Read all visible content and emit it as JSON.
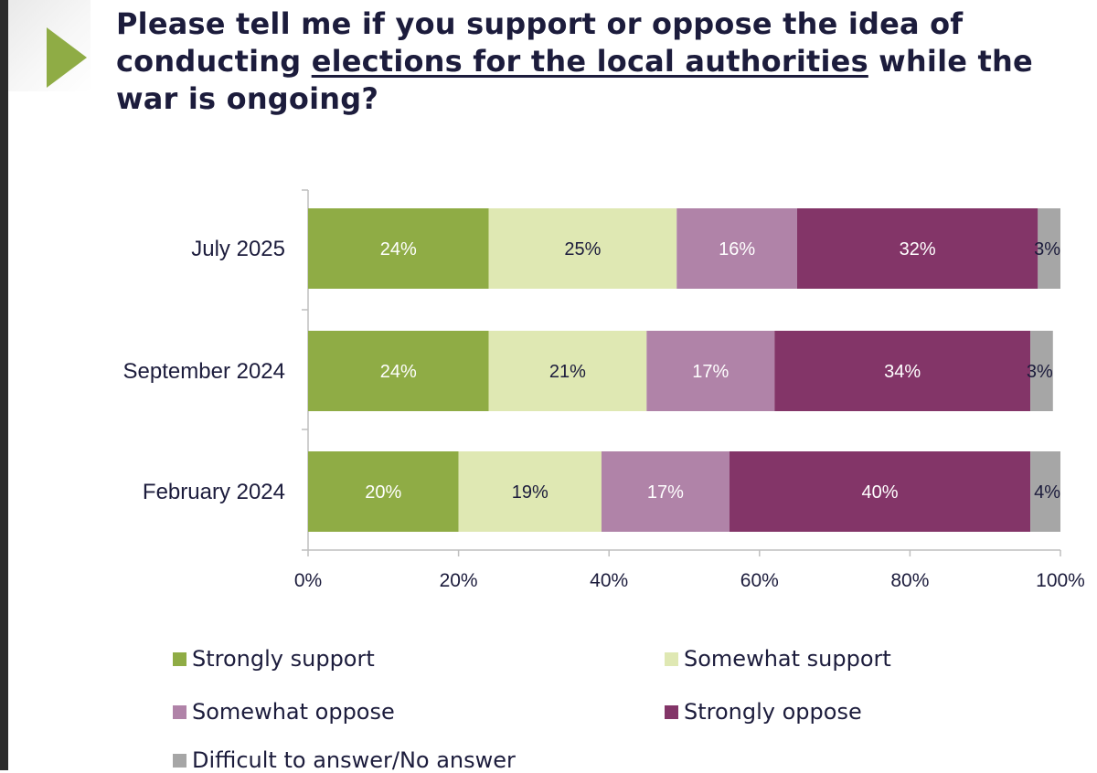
{
  "title": {
    "before": "Please tell me if you support or oppose the idea of conducting ",
    "underlined": "elections for the local authorities",
    "after": " while the war is ongoing?"
  },
  "colors": {
    "accent_arrow": "#8fac45",
    "strongly_support": "#8fac45",
    "somewhat_support": "#dfe8b3",
    "somewhat_oppose": "#b083a8",
    "strongly_oppose": "#833568",
    "no_answer": "#a6a6a6"
  },
  "chart_data": {
    "type": "bar",
    "orientation": "horizontal",
    "stacked": true,
    "categories": [
      "July 2025",
      "September 2024",
      "February 2024"
    ],
    "series": [
      {
        "name": "Strongly support",
        "values": [
          24,
          24,
          20
        ],
        "labels": [
          "24%",
          "24%",
          "20%"
        ],
        "color": "#8fac45",
        "label_color": "#ffffff"
      },
      {
        "name": "Somewhat support",
        "values": [
          25,
          21,
          19
        ],
        "labels": [
          "25%",
          "21%",
          "19%"
        ],
        "color": "#dfe8b3",
        "label_color": "#1c1c3c"
      },
      {
        "name": "Somewhat oppose",
        "values": [
          16,
          17,
          17
        ],
        "labels": [
          "16%",
          "17%",
          "17%"
        ],
        "color": "#b083a8",
        "label_color": "#ffffff"
      },
      {
        "name": "Strongly oppose",
        "values": [
          32,
          34,
          40
        ],
        "labels": [
          "32%",
          "34%",
          "40%"
        ],
        "color": "#833568",
        "label_color": "#ffffff"
      },
      {
        "name": "Difficult to answer/No answer",
        "values": [
          3,
          3,
          4
        ],
        "labels": [
          "3%",
          "3%",
          "4%"
        ],
        "color": "#a6a6a6",
        "label_color": "#1c1c3c"
      }
    ],
    "x_ticks": [
      "0%",
      "20%",
      "40%",
      "60%",
      "80%",
      "100%"
    ],
    "xlim": [
      0,
      100
    ],
    "grid": false,
    "legend_position": "bottom"
  }
}
